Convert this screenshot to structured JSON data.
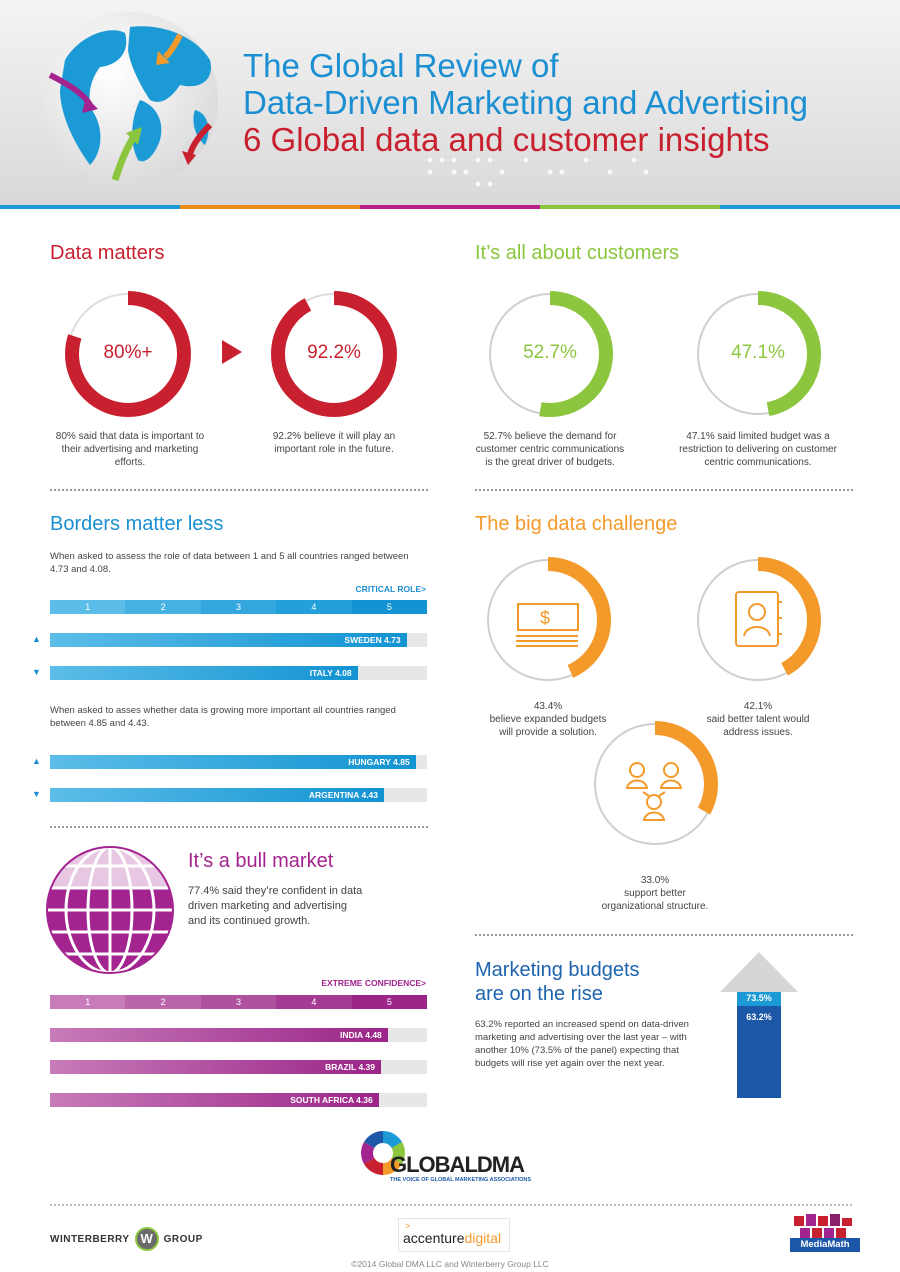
{
  "header": {
    "title_line1": "The Global Review of",
    "title_line2": "Data-Driven Marketing and Advertising",
    "title_line3": "6 Global data and customer insights"
  },
  "sections": {
    "data_matters": {
      "title": "Data matters",
      "donut1": {
        "label": "80%+",
        "caption_l1": "80% said that data is important to",
        "caption_l2": "their advertising and marketing",
        "caption_l3": "efforts."
      },
      "donut2": {
        "label": "92.2%",
        "caption_l1": "92.2% believe it will play an",
        "caption_l2": "important role in the future."
      }
    },
    "customers": {
      "title": "It’s all about customers",
      "donut1": {
        "label": "52.7%",
        "caption_l1": "52.7% believe the demand for",
        "caption_l2": "customer centric communications",
        "caption_l3": "is the great driver of budgets."
      },
      "donut2": {
        "label": "47.1%",
        "caption_l1": "47.1% said limited budget was a",
        "caption_l2": "restriction to delivering on customer",
        "caption_l3": "centric communications."
      }
    },
    "borders": {
      "title": "Borders matter less",
      "intro_l1": "When asked to assess the role of data between 1 and 5 all countries ranged between",
      "intro_l2": "4.73 and 4.08.",
      "scale_cap": "CRITICAL ROLE>",
      "intro2_l1": "When asked to asses whether data is growing more important all countries ranged",
      "intro2_l2": "between 4.85 and 4.43."
    },
    "big_data": {
      "title": "The big data challenge",
      "donut1": {
        "caption_l1": "43.4%",
        "caption_l2": "believe expanded budgets",
        "caption_l3": "will provide a solution."
      },
      "donut2": {
        "caption_l1": "42.1%",
        "caption_l2": "said better talent would",
        "caption_l3": "address issues."
      },
      "donut3": {
        "caption_l1": "33.0%",
        "caption_l2": "support better",
        "caption_l3": "organizational structure."
      }
    },
    "bull": {
      "title": "It’s a bull market",
      "text_l1": "77.4% said they’re confident in data",
      "text_l2": "driven marketing and advertising",
      "text_l3": "and its continued growth.",
      "scale_cap": "EXTREME CONFIDENCE>"
    },
    "budgets": {
      "title_l1": "Marketing budgets",
      "title_l2": "are on the rise",
      "text_l1": "63.2% reported an increased spend on data-driven",
      "text_l2": "marketing and advertising over the last year – with",
      "text_l3": "another 10% (73.5% of the panel) expecting that",
      "text_l4": "budgets will rise yet again over the next year.",
      "arrow_top": "73.5%",
      "arrow_bottom": "63.2%"
    }
  },
  "logos": {
    "globaldma": "GLOBALDMA",
    "globaldma_tag": "THE VOICE OF GLOBAL MARKETING ASSOCIATIONS",
    "winterberry_left": "WINTERBERRY",
    "winterberry_w": "W",
    "winterberry_right": "GROUP",
    "accenture_a": "accenture",
    "accenture_b": "digital",
    "mediamath": "MediaMath"
  },
  "footer": {
    "copyright": "©2014 Global DMA LLC and Winterberry Group LLC"
  },
  "chart_data": [
    {
      "type": "pie",
      "title": "Data matters",
      "values": [
        80,
        92.2
      ],
      "labels": [
        "80%+",
        "92.2%"
      ],
      "color": "#c9202f"
    },
    {
      "type": "pie",
      "title": "It’s all about customers",
      "values": [
        52.7,
        47.1
      ],
      "labels": [
        "52.7%",
        "47.1%"
      ],
      "color": "#8cc63e"
    },
    {
      "type": "pie",
      "title": "The big data challenge",
      "values": [
        43.4,
        42.1,
        33.0
      ],
      "color": "#f39a2b"
    },
    {
      "type": "bar",
      "title": "Borders matter less",
      "scale": [
        1,
        2,
        3,
        4,
        5
      ],
      "categories": [
        "SWEDEN",
        "ITALY",
        "HUNGARY",
        "ARGENTINA"
      ],
      "values": [
        4.73,
        4.08,
        4.85,
        4.43
      ],
      "labels": [
        "SWEDEN 4.73",
        "ITALY 4.08",
        "HUNGARY 4.85",
        "ARGENTINA 4.43"
      ],
      "xlim": [
        0,
        5
      ],
      "color": "#1b9ad6"
    },
    {
      "type": "bar",
      "title": "It’s a bull market",
      "scale": [
        1,
        2,
        3,
        4,
        5
      ],
      "categories": [
        "INDIA",
        "BRAZIL",
        "SOUTH AFRICA"
      ],
      "values": [
        4.48,
        4.39,
        4.36
      ],
      "labels": [
        "INDIA 4.48",
        "BRAZIL 4.39",
        "SOUTH AFRICA 4.36"
      ],
      "xlim": [
        0,
        5
      ],
      "color": "#b8238a"
    },
    {
      "type": "bar",
      "title": "Marketing budgets are on the rise",
      "categories": [
        "expected",
        "last year"
      ],
      "values": [
        73.5,
        63.2
      ]
    }
  ]
}
